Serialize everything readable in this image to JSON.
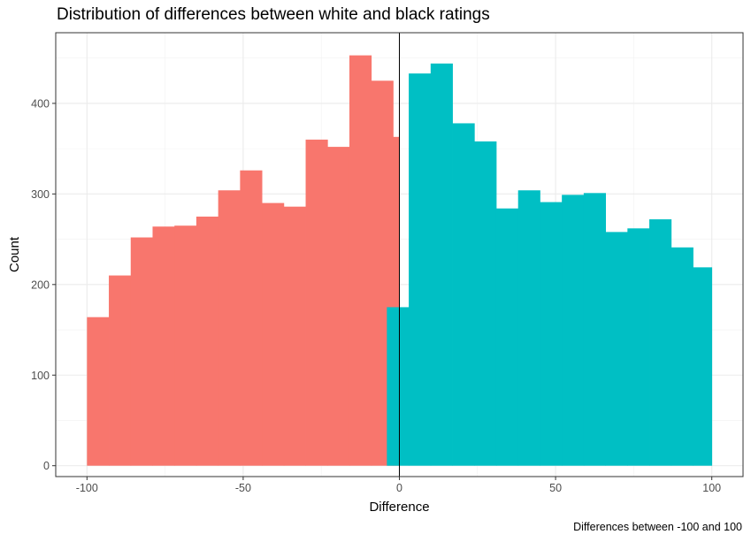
{
  "chart_data": {
    "type": "bar",
    "title": "Distribution of differences between white and black ratings",
    "caption": "Differences between -100 and 100",
    "xlabel": "Difference",
    "ylabel": "Count",
    "xlim": [
      -110,
      110
    ],
    "ylim": [
      -12,
      478
    ],
    "xticks": [
      -100,
      -50,
      0,
      50,
      100
    ],
    "yticks": [
      0,
      100,
      200,
      300,
      400
    ],
    "grid": true,
    "legend": "none",
    "vline": 0,
    "series": [
      {
        "color": "#F8766D",
        "bins": [
          {
            "x0": -100,
            "x1": -93,
            "count": 164
          },
          {
            "x0": -93,
            "x1": -86,
            "count": 210
          },
          {
            "x0": -86,
            "x1": -79,
            "count": 252
          },
          {
            "x0": -79,
            "x1": -72,
            "count": 264
          },
          {
            "x0": -72,
            "x1": -65,
            "count": 265
          },
          {
            "x0": -65,
            "x1": -58,
            "count": 275
          },
          {
            "x0": -58,
            "x1": -51,
            "count": 304
          },
          {
            "x0": -51,
            "x1": -44,
            "count": 326
          },
          {
            "x0": -44,
            "x1": -37,
            "count": 290
          },
          {
            "x0": -37,
            "x1": -30,
            "count": 286
          },
          {
            "x0": -30,
            "x1": -23,
            "count": 360
          },
          {
            "x0": -23,
            "x1": -16,
            "count": 352
          },
          {
            "x0": -16,
            "x1": -9,
            "count": 453
          },
          {
            "x0": -9,
            "x1": -2,
            "count": 425
          },
          {
            "x0": -2,
            "x1": 0,
            "count": 363
          }
        ]
      },
      {
        "color": "#00BFC4",
        "bins": [
          {
            "x0": -4,
            "x1": 3,
            "count": 175
          },
          {
            "x0": 3,
            "x1": 10,
            "count": 433
          },
          {
            "x0": 10,
            "x1": 17,
            "count": 444
          },
          {
            "x0": 17,
            "x1": 24,
            "count": 378
          },
          {
            "x0": 24,
            "x1": 31,
            "count": 358
          },
          {
            "x0": 31,
            "x1": 38,
            "count": 284
          },
          {
            "x0": 38,
            "x1": 45,
            "count": 304
          },
          {
            "x0": 45,
            "x1": 52,
            "count": 291
          },
          {
            "x0": 52,
            "x1": 59,
            "count": 299
          },
          {
            "x0": 59,
            "x1": 66,
            "count": 301
          },
          {
            "x0": 66,
            "x1": 73,
            "count": 258
          },
          {
            "x0": 73,
            "x1": 80,
            "count": 262
          },
          {
            "x0": 80,
            "x1": 87,
            "count": 272
          },
          {
            "x0": 87,
            "x1": 94,
            "count": 241
          },
          {
            "x0": 94,
            "x1": 100,
            "count": 219
          }
        ]
      }
    ]
  }
}
